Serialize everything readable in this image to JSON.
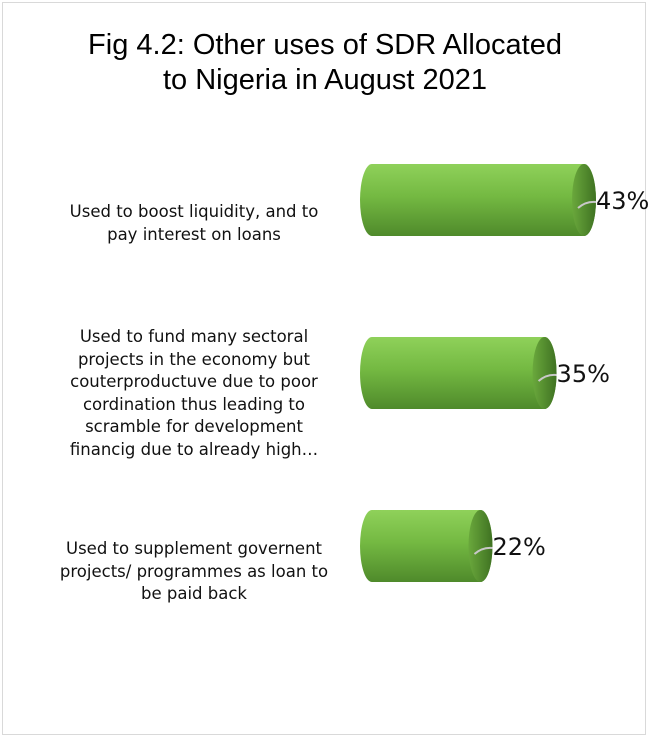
{
  "chart_data": {
    "type": "bar",
    "orientation": "horizontal",
    "style": "3d-cylinder",
    "title": "Fig 4.2: Other uses of SDR Allocated to Nigeria in August 2021",
    "title_lines": [
      "Fig 4.2: Other uses of SDR Allocated",
      "to Nigeria in August 2021"
    ],
    "categories": [
      "Used to boost liquidity, and to pay interest on loans",
      "Used to fund many sectoral projects in the economy but couterproductuve due to poor cordination thus leading to scramble for development financig due to already high…",
      "Used to supplement governent projects/ programmes as loan to be paid back"
    ],
    "category_lines": [
      [
        "Used to boost liquidity, and to",
        "pay interest on loans"
      ],
      [
        "Used to fund many sectoral",
        "projects in the economy but",
        "couterproductuve due to poor",
        "cordination thus leading to",
        "scramble for development",
        "financig due to already high…"
      ],
      [
        "Used to supplement governent",
        "projects/ programmes as loan to",
        "be paid back"
      ]
    ],
    "values": [
      43,
      35,
      22
    ],
    "data_labels": [
      "43%",
      "35%",
      "22%"
    ],
    "unit": "%",
    "xlim": [
      0,
      43
    ],
    "grid": false,
    "legend": "none",
    "colors": {
      "bar_light": "#8fd15a",
      "bar_mid": "#6fb33f",
      "bar_dark": "#4f8a2b",
      "cap": "#5e9a35",
      "leader": "#c8c8c8"
    }
  }
}
